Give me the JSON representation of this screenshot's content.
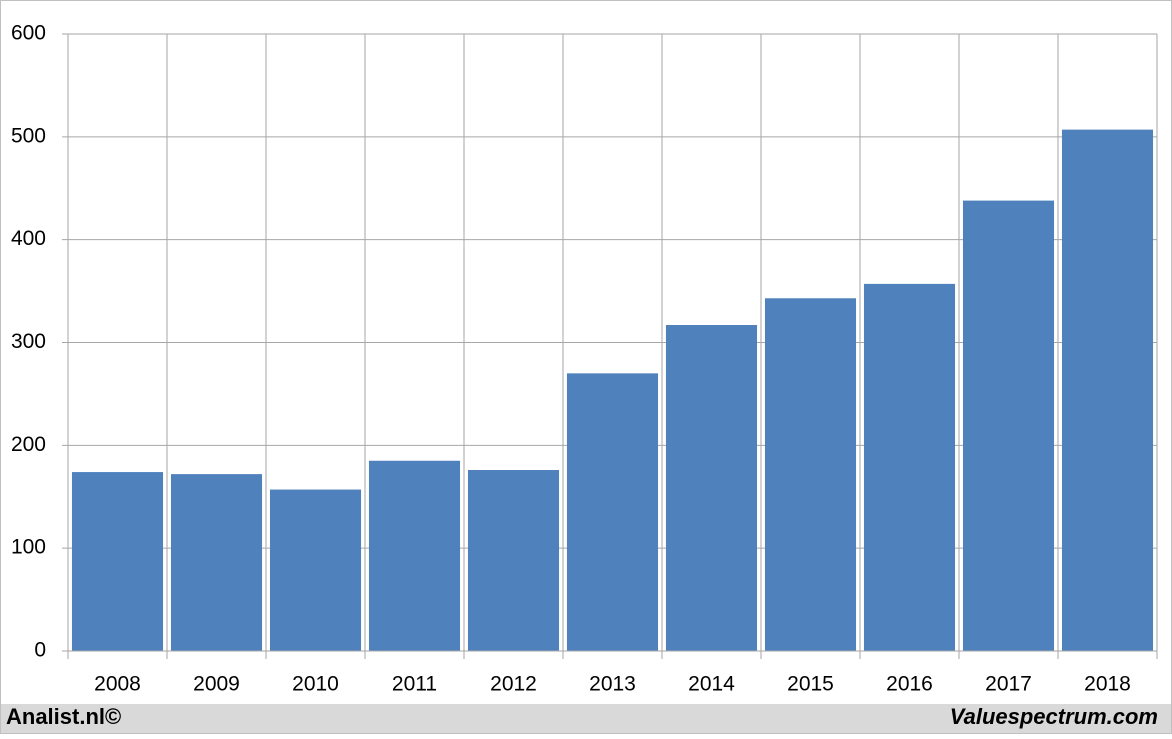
{
  "chart_data": {
    "type": "bar",
    "categories": [
      "2008",
      "2009",
      "2010",
      "2011",
      "2012",
      "2013",
      "2014",
      "2015",
      "2016",
      "2017",
      "2018"
    ],
    "values": [
      174,
      172,
      157,
      185,
      176,
      270,
      317,
      343,
      357,
      438,
      507
    ],
    "color": "#4f81bd",
    "ylim": [
      0,
      600
    ],
    "yticks": [
      0,
      100,
      200,
      300,
      400,
      500,
      600
    ],
    "grid": true,
    "source": "Analist.nl©",
    "credit": "Valuespectrum.com"
  }
}
